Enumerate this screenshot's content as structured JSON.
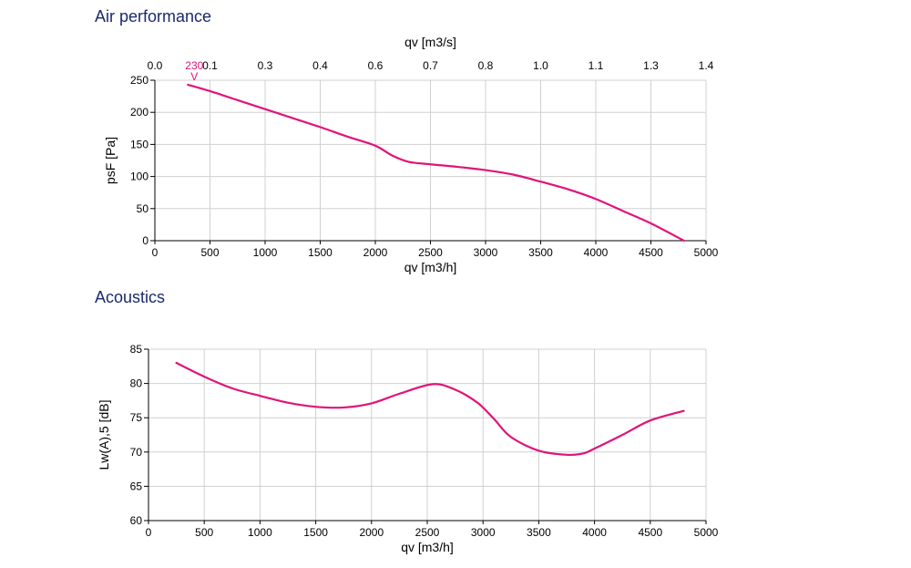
{
  "sections": {
    "air_title": "Air performance",
    "acoustics_title": "Acoustics"
  },
  "colors": {
    "series": "#e0147a",
    "grid": "#d0d0d0",
    "title": "#1a2a6c"
  },
  "chart_data": [
    {
      "type": "line",
      "xlabel": "qv [m3/h]",
      "x2label": "qv [m3/s]",
      "ylabel": "psF [Pa]",
      "xlim": [
        0,
        5000
      ],
      "ylim": [
        0,
        250
      ],
      "xticks": [
        "0",
        "500",
        "1000",
        "1500",
        "2000",
        "2500",
        "3000",
        "3500",
        "4000",
        "4500",
        "5000"
      ],
      "x2ticks": [
        "0.0",
        "0.1",
        "0.3",
        "0.4",
        "0.6",
        "0.7",
        "0.8",
        "1.0",
        "1.1",
        "1.3",
        "1.4"
      ],
      "yticks": [
        "0",
        "50",
        "100",
        "150",
        "200",
        "250"
      ],
      "grid": true,
      "series": [
        {
          "name": "230 V",
          "x": [
            300,
            500,
            750,
            1000,
            1250,
            1500,
            1750,
            2000,
            2150,
            2300,
            2500,
            2750,
            3000,
            3250,
            3500,
            3750,
            4000,
            4250,
            4500,
            4800
          ],
          "y": [
            243,
            233,
            219,
            205,
            191,
            177,
            162,
            148,
            133,
            123,
            119,
            115,
            110,
            103,
            92,
            80,
            65,
            46,
            27,
            0
          ]
        }
      ]
    },
    {
      "type": "line",
      "xlabel": "qv [m3/h]",
      "ylabel": "Lw(A),5 [dB]",
      "xlim": [
        0,
        5000
      ],
      "ylim": [
        60,
        85
      ],
      "xticks": [
        "0",
        "500",
        "1000",
        "1500",
        "2000",
        "2500",
        "3000",
        "3500",
        "4000",
        "4500",
        "5000"
      ],
      "yticks": [
        "60",
        "65",
        "70",
        "75",
        "80",
        "85"
      ],
      "grid": true,
      "series": [
        {
          "x": [
            250,
            500,
            750,
            1000,
            1250,
            1500,
            1750,
            2000,
            2250,
            2550,
            2750,
            2950,
            3100,
            3250,
            3500,
            3750,
            3900,
            4000,
            4250,
            4500,
            4800
          ],
          "y": [
            83,
            81,
            79.3,
            78.2,
            77.2,
            76.6,
            76.5,
            77.1,
            78.5,
            79.9,
            79.1,
            77.2,
            74.8,
            72.2,
            70.2,
            69.6,
            69.8,
            70.5,
            72.5,
            74.6,
            76
          ]
        }
      ]
    }
  ]
}
